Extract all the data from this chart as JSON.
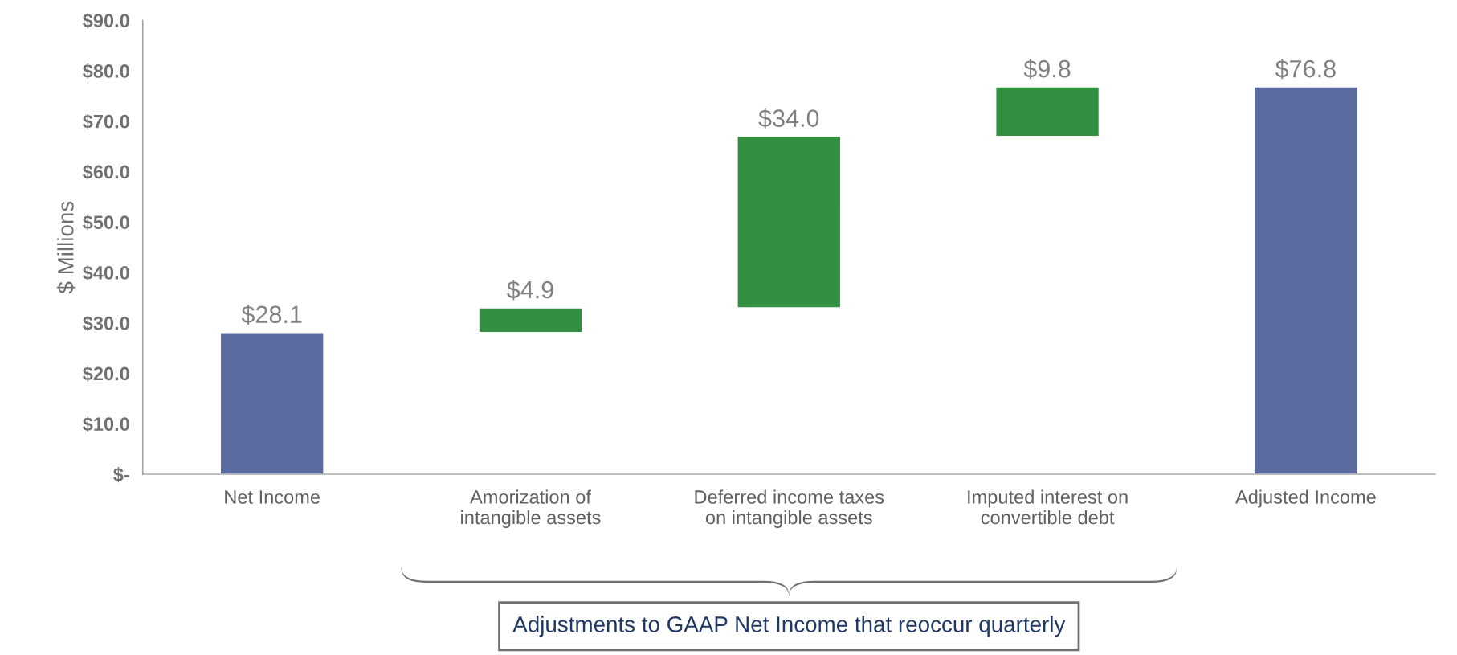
{
  "chart_data": {
    "type": "bar",
    "ylabel": "$ Millions",
    "categories": [
      "Net Income",
      "Amorization of\nintangible assets",
      "Deferred income taxes\non intangible assets",
      "Imputed interest on\nconvertible debt",
      "Adjusted Income"
    ],
    "values": [
      28.1,
      4.9,
      34.0,
      9.8,
      76.8
    ],
    "base": [
      0,
      28.1,
      33.0,
      67.0,
      0
    ],
    "colors": [
      "#5b6ba0",
      "#339040",
      "#339040",
      "#339040",
      "#5b6ba0"
    ],
    "value_labels": [
      "$28.1",
      "$4.9",
      "$34.0",
      "$9.8",
      "$76.8"
    ],
    "ylim": [
      0,
      90
    ],
    "yticks": [
      {
        "value": 0,
        "label": "$-"
      },
      {
        "value": 10,
        "label": "$10.0"
      },
      {
        "value": 20,
        "label": "$20.0"
      },
      {
        "value": 30,
        "label": "$30.0"
      },
      {
        "value": 40,
        "label": "$40.0"
      },
      {
        "value": 50,
        "label": "$50.0"
      },
      {
        "value": 60,
        "label": "$60.0"
      },
      {
        "value": 70,
        "label": "$70.0"
      },
      {
        "value": 80,
        "label": "$80.0"
      },
      {
        "value": 90,
        "label": "$90.0"
      }
    ],
    "grid": false,
    "legend": false,
    "annotations": [
      "Adjustments to GAAP Net Income that reoccur quarterly"
    ]
  }
}
